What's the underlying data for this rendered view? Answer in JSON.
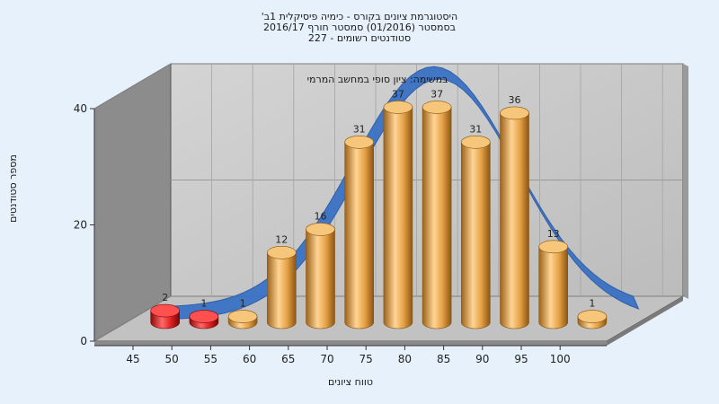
{
  "chart_data": {
    "type": "bar",
    "title_lines": [
      "היסטוגרמת ציונים בקורס - כימיה פיסיקלית 1ב'",
      "בסמסטר (01/2016) סמסטר חורף 2016/17",
      "סטודנטים רשומים - 227"
    ],
    "annotation": "במשימה: ציון סופי במחשב המרמי",
    "xlabel": "טווח ציונים",
    "ylabel": "מספר סטודנטים",
    "categories": [
      "45",
      "50",
      "55",
      "60",
      "65",
      "70",
      "75",
      "80",
      "85",
      "90",
      "95",
      "100"
    ],
    "values": [
      2,
      1,
      1,
      12,
      16,
      31,
      37,
      37,
      31,
      36,
      13,
      1
    ],
    "bar_colors": [
      "#e02020",
      "#e02020",
      "#e8a040",
      "#e8a040",
      "#e8a040",
      "#e8a040",
      "#e8a040",
      "#e8a040",
      "#e8a040",
      "#e8a040",
      "#e8a040",
      "#e8a040"
    ],
    "curve_color": "#3a72c4",
    "y_ticks": [
      "0",
      "20",
      "40"
    ],
    "ylim": [
      0,
      40
    ],
    "grid": true
  }
}
